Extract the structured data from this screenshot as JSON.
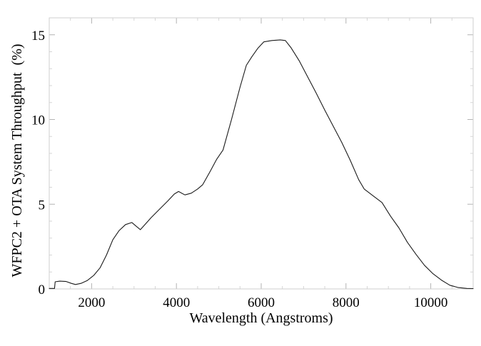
{
  "figure": {
    "background": "#ffffff",
    "frame_color": "#cfcfcf",
    "major_tick_color": "#b3b3b3",
    "minor_tick_color": "#d6d6d6",
    "curve_color": "#1b1b1b",
    "label_color": "#000000"
  },
  "chart_data": {
    "type": "line",
    "title": "",
    "xlabel": "Wavelength (Angstroms)",
    "ylabel": "WFPC2 + OTA System Throughput  (%)",
    "xlim": [
      1000,
      11000
    ],
    "ylim": [
      0,
      16
    ],
    "x_major_ticks": [
      2000,
      4000,
      6000,
      8000,
      10000
    ],
    "x_tick_labels": [
      "2000",
      "4000",
      "6000",
      "8000",
      "10000"
    ],
    "x_minor_step": 500,
    "y_major_ticks": [
      0,
      5,
      10,
      15
    ],
    "y_tick_labels": [
      "0",
      "5",
      "10",
      "15"
    ],
    "y_minor_step": 1,
    "grid": false,
    "legend": null,
    "box_axes": true,
    "series": [
      {
        "name": "WFPC2 + OTA system throughput",
        "points": [
          [
            1000,
            0.03
          ],
          [
            1125,
            0.03
          ],
          [
            1140,
            0.42
          ],
          [
            1250,
            0.46
          ],
          [
            1400,
            0.44
          ],
          [
            1520,
            0.33
          ],
          [
            1620,
            0.26
          ],
          [
            1750,
            0.33
          ],
          [
            1900,
            0.5
          ],
          [
            2050,
            0.8
          ],
          [
            2200,
            1.25
          ],
          [
            2350,
            2.0
          ],
          [
            2500,
            2.9
          ],
          [
            2650,
            3.45
          ],
          [
            2800,
            3.8
          ],
          [
            2950,
            3.92
          ],
          [
            3050,
            3.7
          ],
          [
            3150,
            3.5
          ],
          [
            3250,
            3.78
          ],
          [
            3400,
            4.2
          ],
          [
            3600,
            4.7
          ],
          [
            3800,
            5.2
          ],
          [
            3950,
            5.6
          ],
          [
            4050,
            5.75
          ],
          [
            4200,
            5.55
          ],
          [
            4350,
            5.65
          ],
          [
            4500,
            5.9
          ],
          [
            4620,
            6.15
          ],
          [
            4800,
            6.95
          ],
          [
            4950,
            7.65
          ],
          [
            5100,
            8.2
          ],
          [
            5300,
            10.0
          ],
          [
            5500,
            11.9
          ],
          [
            5650,
            13.2
          ],
          [
            5780,
            13.7
          ],
          [
            5920,
            14.2
          ],
          [
            6060,
            14.58
          ],
          [
            6250,
            14.66
          ],
          [
            6450,
            14.7
          ],
          [
            6570,
            14.66
          ],
          [
            6700,
            14.25
          ],
          [
            6900,
            13.45
          ],
          [
            7100,
            12.5
          ],
          [
            7300,
            11.55
          ],
          [
            7500,
            10.55
          ],
          [
            7700,
            9.6
          ],
          [
            7900,
            8.65
          ],
          [
            8100,
            7.6
          ],
          [
            8300,
            6.45
          ],
          [
            8430,
            5.9
          ],
          [
            8650,
            5.48
          ],
          [
            8850,
            5.1
          ],
          [
            9050,
            4.3
          ],
          [
            9250,
            3.6
          ],
          [
            9450,
            2.75
          ],
          [
            9650,
            2.05
          ],
          [
            9850,
            1.4
          ],
          [
            10050,
            0.9
          ],
          [
            10250,
            0.52
          ],
          [
            10450,
            0.22
          ],
          [
            10650,
            0.08
          ],
          [
            10850,
            0.03
          ],
          [
            11000,
            0.02
          ]
        ]
      }
    ]
  }
}
